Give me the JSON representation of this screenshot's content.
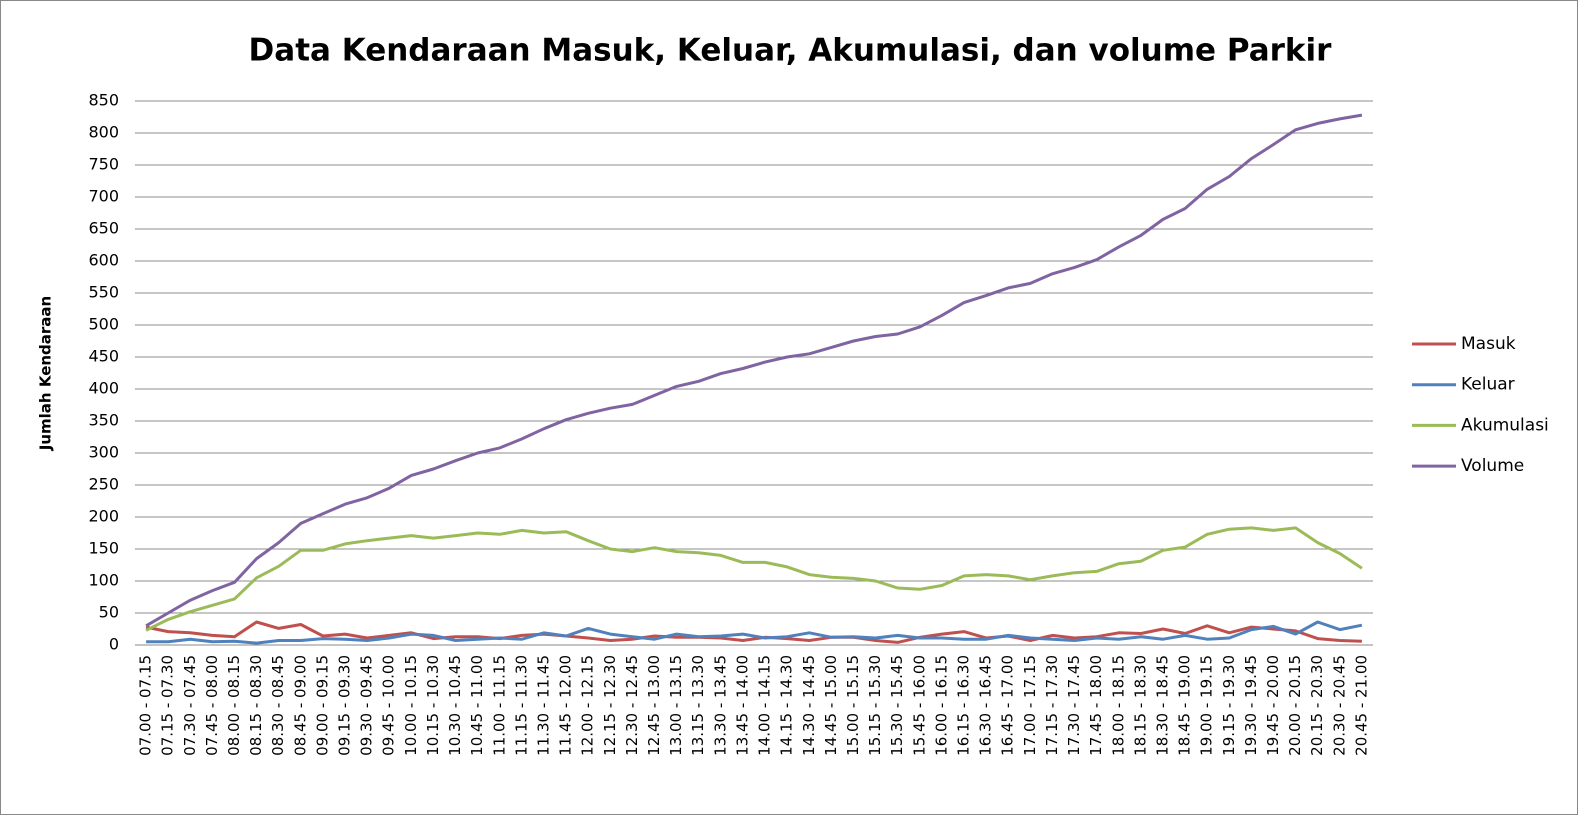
{
  "chart_data": {
    "type": "line",
    "title": "Data Kendaraan Masuk, Keluar, Akumulasi, dan volume Parkir",
    "y_label": "Jumlah Kendaraan",
    "categories": [
      "07.00 - 07.15",
      "07.15 - 07.30",
      "07.30 - 07.45",
      "07.45 - 08.00",
      "08.00 - 08.15",
      "08.15 - 08.30",
      "08.30 - 08.45",
      "08.45 - 09.00",
      "09.00 - 09.15",
      "09.15 - 09.30",
      "09.30 - 09.45",
      "09.45 - 10.00",
      "10.00 - 10.15",
      "10.15 - 10.30",
      "10.30 - 10.45",
      "10.45 - 11.00",
      "11.00 - 11.15",
      "11.15 - 11.30",
      "11.30 - 11.45",
      "11.45 - 12.00",
      "12.00 - 12.15",
      "12.15 - 12.30",
      "12.30 - 12.45",
      "12.45 - 13.00",
      "13.00 - 13.15",
      "13.15 - 13.30",
      "13.30 - 13.45",
      "13.45 - 14.00",
      "14.00 - 14.15",
      "14.15 - 14.30",
      "14.30 - 14.45",
      "14.45 - 15.00",
      "15.00 - 15.15",
      "15.15 - 15.30",
      "15.30 - 15.45",
      "15.45 - 16.00",
      "16.00 - 16.15",
      "16.15 - 16.30",
      "16.30 - 16.45",
      "16.45 - 17.00",
      "17.00 - 17.15",
      "17.15 - 17.30",
      "17.30 - 17.45",
      "17.45 - 18.00",
      "18.00 - 18.15",
      "18.15 - 18.30",
      "18.30 - 18.45",
      "18.45 - 19.00",
      "19.00 - 19.15",
      "19.15 - 19.30",
      "19.30 - 19.45",
      "19.45 - 20.00",
      "20.00 - 20.15",
      "20.15 - 20.30",
      "20.30 - 20.45",
      "20.45 - 21.00"
    ],
    "series": [
      {
        "name": "Masuk",
        "color": "#c0504d",
        "values": [
          28,
          21,
          19,
          15,
          13,
          36,
          26,
          32,
          14,
          17,
          11,
          15,
          19,
          10,
          13,
          13,
          10,
          15,
          17,
          14,
          11,
          7,
          9,
          14,
          12,
          12,
          11,
          7,
          12,
          10,
          7,
          12,
          12,
          7,
          4,
          12,
          17,
          21,
          11,
          14,
          7,
          15,
          11,
          13,
          19,
          18,
          25,
          18,
          30,
          19,
          28,
          25,
          22,
          10,
          7,
          6
        ]
      },
      {
        "name": "Keluar",
        "color": "#4f81bd",
        "values": [
          5,
          5,
          9,
          5,
          6,
          3,
          7,
          7,
          10,
          9,
          7,
          11,
          17,
          15,
          7,
          9,
          11,
          9,
          19,
          14,
          26,
          17,
          13,
          9,
          17,
          13,
          14,
          17,
          11,
          13,
          19,
          12,
          13,
          11,
          15,
          11,
          11,
          9,
          9,
          15,
          11,
          9,
          7,
          11,
          9,
          13,
          9,
          15,
          9,
          11,
          24,
          29,
          17,
          36,
          24,
          31
        ]
      },
      {
        "name": "Akumulasi",
        "color": "#9bbb59",
        "values": [
          23,
          40,
          52,
          62,
          72,
          105,
          123,
          148,
          148,
          158,
          163,
          167,
          171,
          167,
          171,
          175,
          173,
          179,
          175,
          177,
          163,
          150,
          146,
          152,
          146,
          144,
          140,
          129,
          129,
          122,
          110,
          106,
          104,
          100,
          89,
          87,
          93,
          108,
          110,
          108,
          102,
          108,
          113,
          115,
          127,
          131,
          148,
          153,
          173,
          181,
          183,
          179,
          183,
          160,
          143,
          120
        ]
      },
      {
        "name": "Volume",
        "color": "#8064a2",
        "values": [
          30,
          50,
          70,
          85,
          98,
          135,
          160,
          190,
          205,
          220,
          230,
          245,
          265,
          275,
          288,
          300,
          308,
          322,
          338,
          352,
          362,
          370,
          376,
          390,
          404,
          412,
          424,
          432,
          442,
          450,
          455,
          465,
          475,
          482,
          486,
          497,
          515,
          535,
          546,
          558,
          565,
          580,
          590,
          602,
          622,
          640,
          665,
          682,
          712,
          732,
          760,
          782,
          805,
          815,
          822,
          828
        ]
      }
    ],
    "ylim": [
      0,
      850
    ],
    "yticks": [
      0,
      50,
      100,
      150,
      200,
      250,
      300,
      350,
      400,
      450,
      500,
      550,
      600,
      650,
      700,
      750,
      800,
      850
    ],
    "grid": true,
    "legend": "right"
  }
}
